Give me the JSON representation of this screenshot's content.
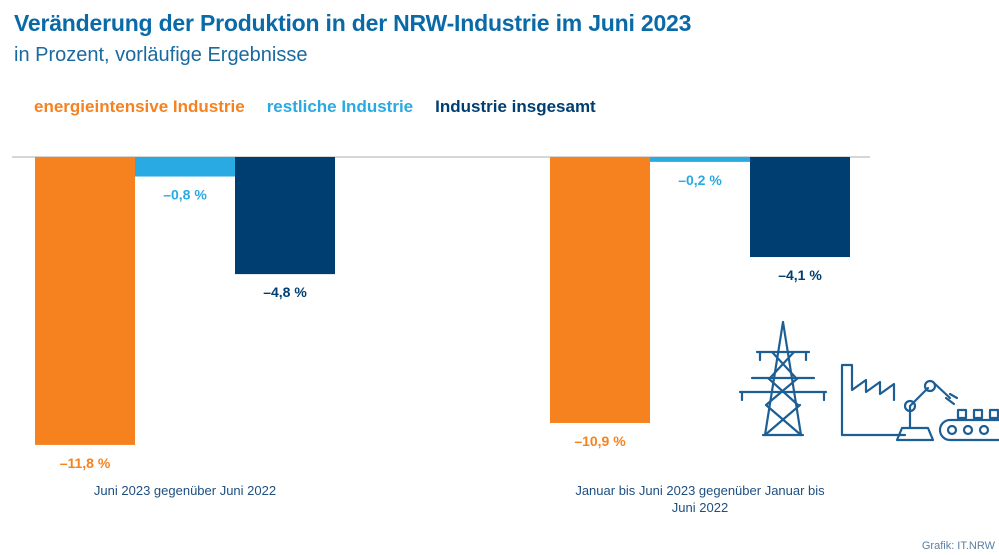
{
  "header": {
    "title": "Veränderung der Produktion in der NRW-Industrie im Juni 2023",
    "subtitle": "in Prozent, vorläufige Ergebnisse"
  },
  "footer": {
    "source": "Grafik: IT.NRW"
  },
  "colors": {
    "energieintensive": "#f5821f",
    "restliche": "#29aae2",
    "insgesamt": "#003e72",
    "title": "#0a6aa8"
  },
  "chart_data": {
    "type": "bar",
    "categories": [
      [
        "Juni 2023 gegenüber Juni 2022"
      ],
      [
        "Januar bis Juni 2023 gegenüber Januar bis",
        "Juni 2022"
      ]
    ],
    "series": [
      {
        "name": "energieintensive Industrie",
        "values": [
          -11.8,
          -10.9
        ],
        "labels": [
          "–11,8 %",
          "–10,9 %"
        ],
        "color": "#f5821f"
      },
      {
        "name": "restliche Industrie",
        "values": [
          -0.8,
          -0.2
        ],
        "labels": [
          "–0,8 %",
          "–0,2 %"
        ],
        "color": "#29aae2"
      },
      {
        "name": "Industrie insgesamt",
        "values": [
          -4.8,
          -4.1
        ],
        "labels": [
          "–4,8 %",
          "–4,1 %"
        ],
        "color": "#003e72"
      }
    ],
    "ylim": [
      -12,
      0
    ],
    "legend_position": "top-left",
    "grid": false
  },
  "illustration": {
    "icons": [
      "power-pylon-icon",
      "factory-icon",
      "robot-arm-icon",
      "conveyor-belt-icon"
    ],
    "color": "#1d5f95"
  }
}
